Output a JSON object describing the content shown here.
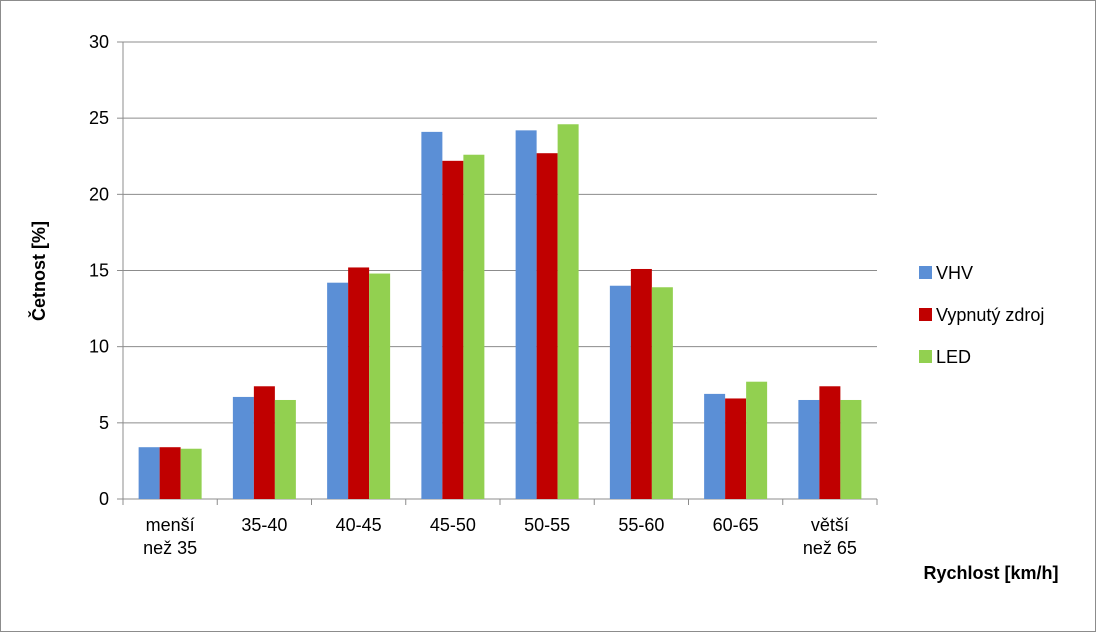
{
  "chart_data": {
    "type": "bar",
    "title": "",
    "xlabel": "Rychlost [km/h]",
    "ylabel": "Četnost [%]",
    "ylim": [
      0,
      30
    ],
    "yticks": [
      0,
      5,
      10,
      15,
      20,
      25,
      30
    ],
    "grid": true,
    "legend_position": "right",
    "categories": [
      [
        "menší",
        "než 35"
      ],
      [
        "35-40"
      ],
      [
        "40-45"
      ],
      [
        "45-50"
      ],
      [
        "50-55"
      ],
      [
        "55-60"
      ],
      [
        "60-65"
      ],
      [
        "větší",
        "než 65"
      ]
    ],
    "series": [
      {
        "name": "VHV",
        "color": "#5b8fd6",
        "values": [
          3.4,
          6.7,
          14.2,
          24.1,
          24.2,
          14.0,
          6.9,
          6.5
        ]
      },
      {
        "name": "Vypnutý zdroj",
        "color": "#c00000",
        "values": [
          3.4,
          7.4,
          15.2,
          22.2,
          22.7,
          15.1,
          6.6,
          7.4
        ]
      },
      {
        "name": "LED",
        "color": "#92d050",
        "values": [
          3.3,
          6.5,
          14.8,
          22.6,
          24.6,
          13.9,
          7.7,
          6.5
        ]
      }
    ]
  }
}
